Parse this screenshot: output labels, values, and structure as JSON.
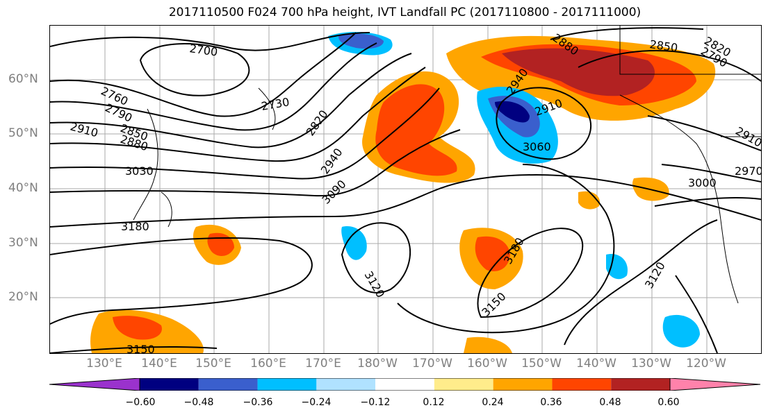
{
  "title": "2017110500 F024 700 hPa height, IVT Landfall PC (2017110800 - 2017111000)",
  "lat_labels": [
    "60°N",
    "50°N",
    "40°N",
    "30°N",
    "20°N"
  ],
  "lon_labels": [
    "130°E",
    "140°E",
    "150°E",
    "160°E",
    "170°E",
    "180°W",
    "170°W",
    "160°W",
    "150°W",
    "140°W",
    "130°W",
    "120°W"
  ],
  "contour_labels": [
    "2700",
    "2730",
    "2760",
    "2790",
    "2820",
    "2850",
    "2850",
    "2880",
    "2880",
    "2910",
    "2910",
    "2940",
    "2940",
    "2970",
    "3000",
    "3030",
    "3060",
    "3090",
    "3120",
    "3120",
    "3150",
    "3150",
    "3180",
    "3180",
    "2910",
    "2820",
    "2790"
  ],
  "colorbar": {
    "ticks": [
      "−0.60",
      "−0.48",
      "−0.36",
      "−0.24",
      "−0.12",
      "0.12",
      "0.24",
      "0.36",
      "0.48",
      "0.60"
    ],
    "colors": [
      "#9a32cd",
      "#000080",
      "#3a5fcd",
      "#00bfff",
      "#b0e2ff",
      "#ffffff",
      "#ffec8b",
      "#ffa500",
      "#ff4500",
      "#b22222",
      "#ff82ab"
    ]
  }
}
